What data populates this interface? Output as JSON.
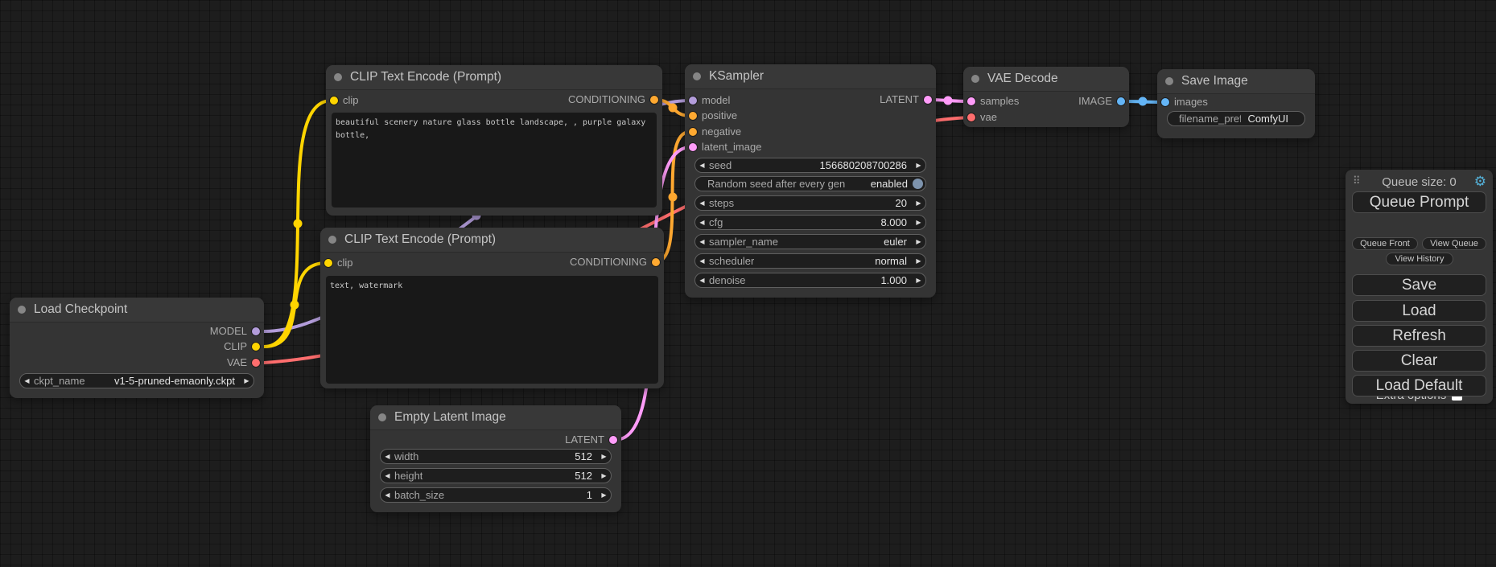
{
  "colors": {
    "model": "#B39DDB",
    "clip": "#FFD500",
    "vae": "#FF6E6E",
    "conditioning": "#FFA931",
    "latent": "#FF9CF9",
    "image": "#64B5F6",
    "toggle_knob": "#7d93ad",
    "gear": "#54b2da"
  },
  "icons": {
    "arrow_left": "◀",
    "arrow_right": "▶",
    "gear": "⚙",
    "drag_handle": "⠿"
  },
  "nodes": [
    {
      "id": "clip-text-encode-1",
      "title": "CLIP Text Encode (Prompt)",
      "inputs": [
        {
          "label": "clip",
          "type": "clip"
        }
      ],
      "outputs": [
        {
          "label": "CONDITIONING",
          "type": "conditioning"
        }
      ],
      "widgets": [],
      "text": "beautiful scenery nature glass bottle landscape, , purple galaxy bottle,"
    },
    {
      "id": "clip-text-encode-2",
      "title": "CLIP Text Encode (Prompt)",
      "inputs": [
        {
          "label": "clip",
          "type": "clip"
        }
      ],
      "outputs": [
        {
          "label": "CONDITIONING",
          "type": "conditioning"
        }
      ],
      "widgets": [],
      "text": "text, watermark"
    },
    {
      "id": "ksampler",
      "title": "KSampler",
      "inputs": [
        {
          "label": "model",
          "type": "model"
        },
        {
          "label": "positive",
          "type": "conditioning"
        },
        {
          "label": "negative",
          "type": "conditioning"
        },
        {
          "label": "latent_image",
          "type": "latent"
        }
      ],
      "outputs": [
        {
          "label": "LATENT",
          "type": "latent"
        }
      ],
      "widgets": [
        {
          "kind": "combo",
          "label": "seed",
          "value": "156680208700286"
        },
        {
          "kind": "toggle",
          "label": "Random seed after every gen",
          "value": "enabled"
        },
        {
          "kind": "combo",
          "label": "steps",
          "value": "20"
        },
        {
          "kind": "combo",
          "label": "cfg",
          "value": "8.000"
        },
        {
          "kind": "combo",
          "label": "sampler_name",
          "value": "euler"
        },
        {
          "kind": "combo",
          "label": "scheduler",
          "value": "normal"
        },
        {
          "kind": "combo",
          "label": "denoise",
          "value": "1.000"
        }
      ]
    },
    {
      "id": "vae-decode",
      "title": "VAE Decode",
      "inputs": [
        {
          "label": "samples",
          "type": "latent"
        },
        {
          "label": "vae",
          "type": "vae"
        }
      ],
      "outputs": [
        {
          "label": "IMAGE",
          "type": "image"
        }
      ],
      "widgets": []
    },
    {
      "id": "save-image",
      "title": "Save Image",
      "inputs": [
        {
          "label": "images",
          "type": "image"
        }
      ],
      "outputs": [],
      "widgets": [
        {
          "kind": "field",
          "label": "filename_prefix",
          "value": "ComfyUI"
        }
      ]
    },
    {
      "id": "load-checkpoint",
      "title": "Load Checkpoint",
      "inputs": [],
      "outputs": [
        {
          "label": "MODEL",
          "type": "model"
        },
        {
          "label": "CLIP",
          "type": "clip"
        },
        {
          "label": "VAE",
          "type": "vae"
        }
      ],
      "widgets": [
        {
          "kind": "combo",
          "label": "ckpt_name",
          "value": "v1-5-pruned-emaonly.ckpt"
        }
      ]
    },
    {
      "id": "empty-latent-image",
      "title": "Empty Latent Image",
      "inputs": [],
      "outputs": [
        {
          "label": "LATENT",
          "type": "latent"
        }
      ],
      "widgets": [
        {
          "kind": "combo",
          "label": "width",
          "value": "512"
        },
        {
          "kind": "combo",
          "label": "height",
          "value": "512"
        },
        {
          "kind": "combo",
          "label": "batch_size",
          "value": "1"
        }
      ]
    }
  ],
  "menu": {
    "queue_size": "Queue size: 0",
    "queue_prompt": "Queue Prompt",
    "extra_options": "Extra options",
    "queue_front": "Queue Front",
    "view_queue": "View Queue",
    "view_history": "View History",
    "save": "Save",
    "load": "Load",
    "refresh": "Refresh",
    "clear": "Clear",
    "load_default": "Load Default"
  }
}
